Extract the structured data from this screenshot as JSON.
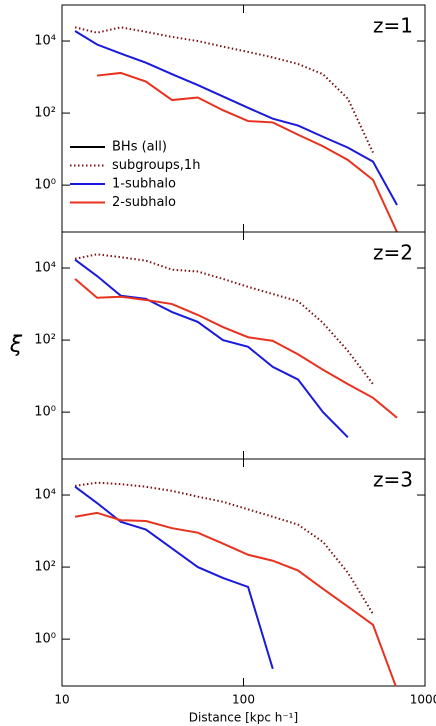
{
  "chart_data": [
    {
      "type": "line",
      "annotation": "z=1",
      "xlim": [
        10,
        1000
      ],
      "ylim": [
        0.05,
        100000
      ],
      "log_x": true,
      "log_y": true,
      "xticks": [
        10,
        100,
        1000
      ],
      "yticks": [
        {
          "value": 1,
          "label": "10⁰"
        },
        {
          "value": 100,
          "label": "10²"
        },
        {
          "value": 10000,
          "label": "10⁴"
        }
      ],
      "legend": "lower left",
      "x": [
        11.8,
        15.6,
        21.1,
        29,
        40.4,
        56,
        77,
        106,
        145,
        200,
        274,
        376,
        517,
        701
      ],
      "series": [
        {
          "name": "BHs (all)",
          "color": "#000000",
          "dash": "solid",
          "values": [
            null,
            null,
            null,
            null,
            null,
            null,
            null,
            null,
            null,
            null,
            null,
            null,
            null,
            null
          ]
        },
        {
          "name": "subgroups,1h",
          "color": "#7a1414",
          "dash": "dotted",
          "values": [
            24000,
            17000,
            24000,
            18000,
            13000,
            10000,
            7000,
            5000,
            3500,
            2300,
            1200,
            250,
            8,
            null
          ]
        },
        {
          "name": "1-subhalo",
          "color": "#1a1adc",
          "dash": "solid",
          "values": [
            19000,
            8000,
            4500,
            2500,
            1200,
            600,
            290,
            140,
            70,
            45,
            22,
            11,
            4.5,
            0.28
          ]
        },
        {
          "name": "2-subhalo",
          "color": "#e8321e",
          "dash": "solid",
          "values": [
            null,
            1100,
            1300,
            750,
            230,
            270,
            120,
            60,
            55,
            25,
            12,
            5,
            1.4,
            0.05
          ]
        }
      ]
    },
    {
      "type": "line",
      "annotation": "z=2",
      "ylabel": "ξ",
      "xlim": [
        10,
        1000
      ],
      "ylim": [
        0.05,
        100000
      ],
      "log_x": true,
      "log_y": true,
      "xticks": [
        10,
        100,
        1000
      ],
      "yticks": [
        {
          "value": 1,
          "label": "10⁰"
        },
        {
          "value": 100,
          "label": "10²"
        },
        {
          "value": 10000,
          "label": "10⁴"
        }
      ],
      "x": [
        11.8,
        15.6,
        21.1,
        29,
        40.4,
        56,
        77,
        106,
        145,
        200,
        274,
        376,
        517,
        701
      ],
      "series": [
        {
          "color": "#7a1414",
          "dash": "dotted",
          "values": [
            18000,
            24000,
            20000,
            16000,
            9000,
            8000,
            5000,
            3000,
            1900,
            1200,
            300,
            50,
            6,
            null
          ]
        },
        {
          "color": "#1a1adc",
          "dash": "solid",
          "values": [
            17000,
            6000,
            1700,
            1400,
            600,
            320,
            100,
            65,
            18,
            8,
            1,
            0.2,
            null,
            null
          ]
        },
        {
          "color": "#e8321e",
          "dash": "solid",
          "values": [
            5000,
            1500,
            1600,
            1300,
            1000,
            500,
            230,
            120,
            95,
            40,
            15,
            6,
            2.5,
            0.7
          ]
        }
      ]
    },
    {
      "type": "line",
      "annotation": "z=3",
      "xlabel": "Distance [kpc h⁻¹]",
      "xlim": [
        10,
        1000
      ],
      "ylim": [
        0.05,
        100000
      ],
      "log_x": true,
      "log_y": true,
      "xticks": [
        10,
        100,
        1000
      ],
      "yticks": [
        {
          "value": 1,
          "label": "10⁰"
        },
        {
          "value": 100,
          "label": "10²"
        },
        {
          "value": 10000,
          "label": "10⁴"
        }
      ],
      "x": [
        11.8,
        15.6,
        21.1,
        29,
        40.4,
        56,
        77,
        106,
        145,
        200,
        274,
        376,
        517,
        701
      ],
      "series": [
        {
          "color": "#7a1414",
          "dash": "dotted",
          "values": [
            18000,
            22000,
            20000,
            17000,
            13000,
            9000,
            6500,
            4000,
            2500,
            1500,
            500,
            70,
            5,
            null
          ]
        },
        {
          "color": "#1a1adc",
          "dash": "solid",
          "values": [
            17000,
            6000,
            1800,
            1100,
            330,
            100,
            50,
            28,
            0.15,
            null,
            null,
            null,
            null,
            null
          ]
        },
        {
          "color": "#e8321e",
          "dash": "solid",
          "values": [
            2500,
            3200,
            2000,
            1900,
            1200,
            900,
            450,
            220,
            150,
            80,
            25,
            8,
            2.5,
            0.04
          ]
        }
      ]
    }
  ]
}
